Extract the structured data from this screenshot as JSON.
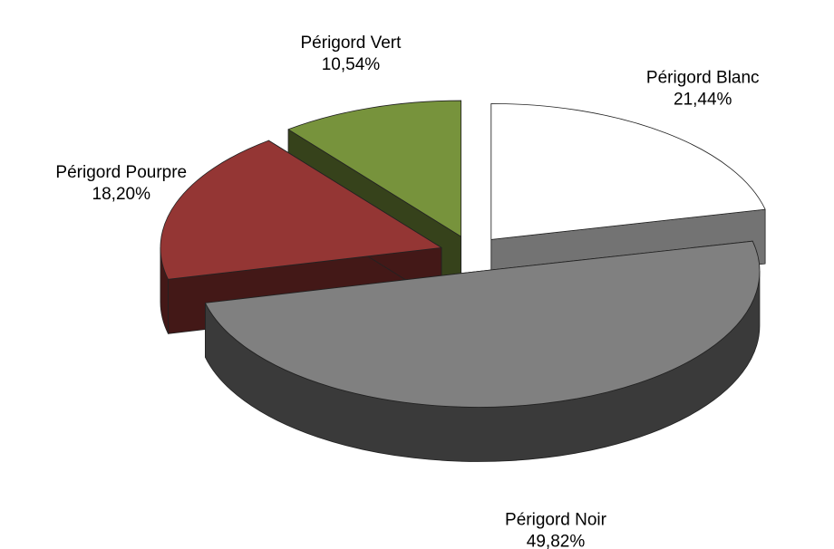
{
  "chart_data": {
    "type": "pie",
    "categories": [
      "Périgord Blanc",
      "Périgord Noir",
      "Périgord Pourpre",
      "Périgord Vert"
    ],
    "values": [
      21.44,
      49.82,
      18.2,
      10.54
    ],
    "value_labels": [
      "21,44%",
      "49,82%",
      "18,20%",
      "10,54%"
    ],
    "colors": [
      "#ffffff",
      "#808080",
      "#943634",
      "#77933c"
    ]
  }
}
